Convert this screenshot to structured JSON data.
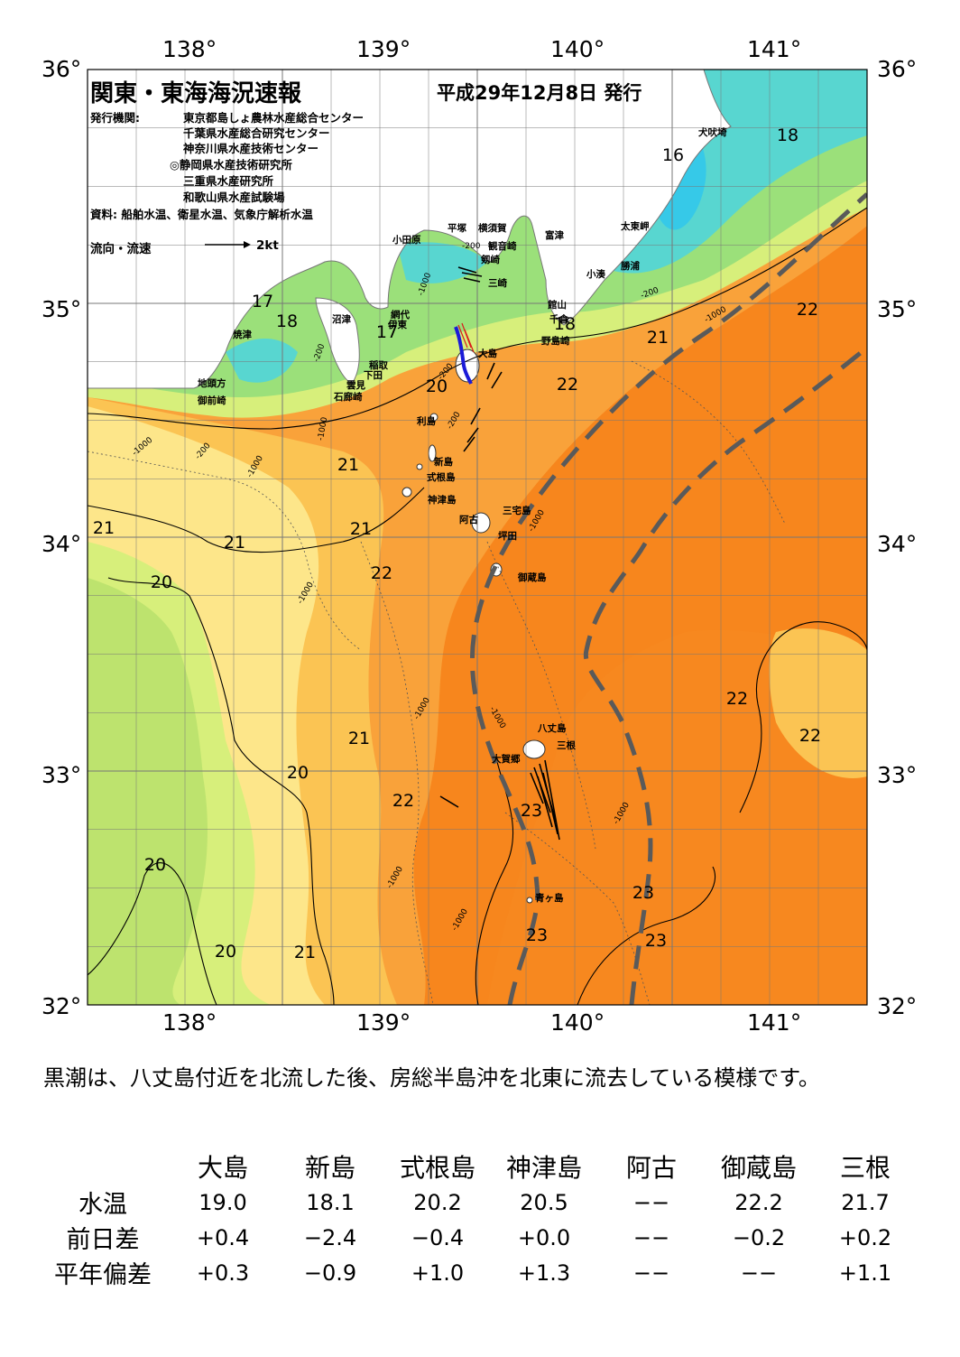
{
  "header": {
    "title": "関東・東海海況速報",
    "issue_date": "平成29年12月8日 発行",
    "org_label": "発行機関:",
    "organizations": [
      "東京都島しょ農林水産総合センター",
      "千葉県水産総合研究センター",
      "神奈川県水産技術センター",
      "◎静岡県水産技術研究所",
      "三重県水産研究所",
      "和歌山県水産試験場"
    ],
    "source": "資料: 船舶水温、衛星水温、気象庁解析水温",
    "current_legend": "流向・流速",
    "current_scale": "2kt"
  },
  "axes": {
    "lon_labels": [
      "138°",
      "139°",
      "140°",
      "141°"
    ],
    "lat_labels": [
      "36°",
      "35°",
      "34°",
      "33°",
      "32°"
    ]
  },
  "places": [
    "犬吠埼",
    "太東岬",
    "勝浦",
    "小湊",
    "富津",
    "館山",
    "千倉",
    "野島崎",
    "横須賀",
    "観音崎",
    "剱崎",
    "三崎",
    "平塚",
    "小田原",
    "沼津",
    "焼津",
    "網代",
    "伊東",
    "稲取",
    "下田",
    "雲見",
    "石廊崎",
    "地頭方",
    "御前崎",
    "大島",
    "利島",
    "新島",
    "式根島",
    "神津島",
    "三宅島",
    "阿古",
    "坪田",
    "御蔵島",
    "八丈島",
    "三根",
    "大賀郷",
    "青ヶ島"
  ],
  "sst_labels": [
    "16",
    "18",
    "17",
    "18",
    "17",
    "18",
    "22",
    "21",
    "20",
    "22",
    "21",
    "21",
    "21",
    "21",
    "22",
    "20",
    "22",
    "22",
    "21",
    "20",
    "22",
    "23",
    "20",
    "23",
    "20",
    "21",
    "23",
    "23"
  ],
  "depth_labels": [
    "-200",
    "-1000",
    "-200",
    "-1000",
    "-200",
    "-1000",
    "-200",
    "-1000",
    "-200",
    "-1000",
    "-1000",
    "-1000",
    "-1000",
    "-1000",
    "-1000",
    "-1000",
    "-200",
    "-1000"
  ],
  "summary": "黒潮は、八丈島付近を北流した後、房総半島沖を北東に流去している模様です。",
  "table": {
    "stations": [
      "大島",
      "新島",
      "式根島",
      "神津島",
      "阿古",
      "御蔵島",
      "三根"
    ],
    "rows": [
      {
        "label": "水温",
        "values": [
          "19.0",
          "18.1",
          "20.2",
          "20.5",
          "−−",
          "22.2",
          "21.7"
        ]
      },
      {
        "label": "前日差",
        "values": [
          "+0.4",
          "−2.4",
          "−0.4",
          "+0.0",
          "−−",
          "−0.2",
          "+0.2"
        ]
      },
      {
        "label": "平年偏差",
        "values": [
          "+0.3",
          "−0.9",
          "+1.0",
          "+1.3",
          "−−",
          "−−",
          "+1.1"
        ]
      }
    ]
  },
  "colors": {
    "warm_deep": "#f7861d",
    "warm": "#f9a23a",
    "warm_light": "#fbc453",
    "yellow": "#fde68a",
    "yellow_green": "#d7ef7b",
    "green": "#bde36e",
    "teal_green": "#9be07a",
    "cyan": "#58d6d0",
    "deep_cyan": "#36c9e8",
    "kuroshio_axis": "#5a5a5a"
  }
}
